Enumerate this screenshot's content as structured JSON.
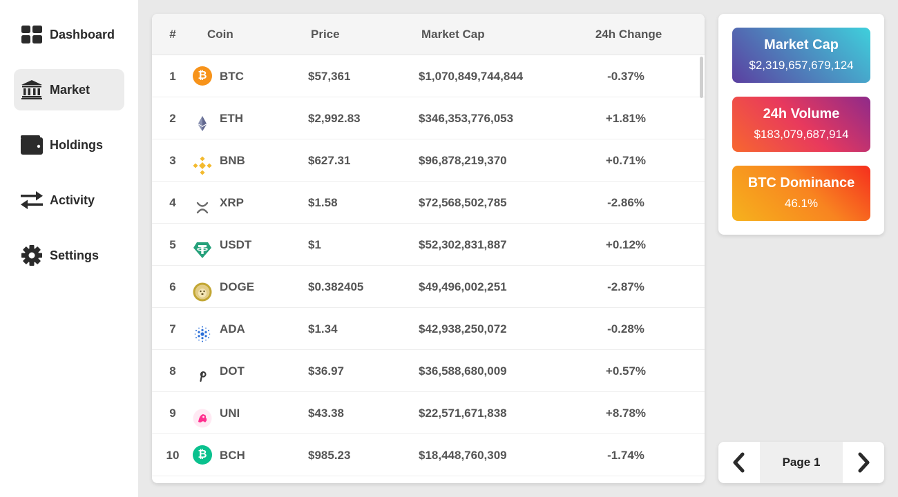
{
  "sidebar": {
    "items": [
      {
        "label": "Dashboard",
        "icon": "dashboard-icon",
        "active": false
      },
      {
        "label": "Market",
        "icon": "bank-icon",
        "active": true
      },
      {
        "label": "Holdings",
        "icon": "wallet-icon",
        "active": false
      },
      {
        "label": "Activity",
        "icon": "exchange-arrows-icon",
        "active": false
      },
      {
        "label": "Settings",
        "icon": "gear-icon",
        "active": false
      }
    ]
  },
  "table": {
    "headers": {
      "rank": "#",
      "coin": "Coin",
      "price": "Price",
      "market_cap": "Market Cap",
      "change": "24h Change"
    },
    "rows": [
      {
        "rank": "1",
        "symbol": "BTC",
        "icon": "bitcoin-icon",
        "price": "$57,361",
        "market_cap": "$1,070,849,744,844",
        "change": "-0.37%"
      },
      {
        "rank": "2",
        "symbol": "ETH",
        "icon": "ethereum-icon",
        "price": "$2,992.83",
        "market_cap": "$346,353,776,053",
        "change": "+1.81%"
      },
      {
        "rank": "3",
        "symbol": "BNB",
        "icon": "bnb-icon",
        "price": "$627.31",
        "market_cap": "$96,878,219,370",
        "change": "+0.71%"
      },
      {
        "rank": "4",
        "symbol": "XRP",
        "icon": "xrp-icon",
        "price": "$1.58",
        "market_cap": "$72,568,502,785",
        "change": "-2.86%"
      },
      {
        "rank": "5",
        "symbol": "USDT",
        "icon": "tether-icon",
        "price": "$1",
        "market_cap": "$52,302,831,887",
        "change": "+0.12%"
      },
      {
        "rank": "6",
        "symbol": "DOGE",
        "icon": "dogecoin-icon",
        "price": "$0.382405",
        "market_cap": "$49,496,002,251",
        "change": "-2.87%"
      },
      {
        "rank": "7",
        "symbol": "ADA",
        "icon": "cardano-icon",
        "price": "$1.34",
        "market_cap": "$42,938,250,072",
        "change": "-0.28%"
      },
      {
        "rank": "8",
        "symbol": "DOT",
        "icon": "polkadot-icon",
        "price": "$36.97",
        "market_cap": "$36,588,680,009",
        "change": "+0.57%"
      },
      {
        "rank": "9",
        "symbol": "UNI",
        "icon": "uniswap-icon",
        "price": "$43.38",
        "market_cap": "$22,571,671,838",
        "change": "+8.78%"
      },
      {
        "rank": "10",
        "symbol": "BCH",
        "icon": "bitcoin-cash-icon",
        "price": "$985.23",
        "market_cap": "$18,448,760,309",
        "change": "-1.74%"
      }
    ]
  },
  "stats": {
    "market_cap": {
      "title": "Market Cap",
      "value": "$2,319,657,679,124"
    },
    "volume": {
      "title": "24h Volume",
      "value": "$183,079,687,914"
    },
    "dominance": {
      "title": "BTC Dominance",
      "value": "46.1%"
    }
  },
  "pager": {
    "label": "Page 1"
  },
  "colors": {
    "btc": "#f7931a",
    "eth": "#627eea",
    "bnb": "#f3ba2f",
    "xrp": "#6b6b6b",
    "usdt": "#26a17b",
    "doge": "#c2a633",
    "ada": "#2a6ed8",
    "dot": "#3a3a3a",
    "uni": "#ff2f8e",
    "bch": "#0ac18e"
  }
}
